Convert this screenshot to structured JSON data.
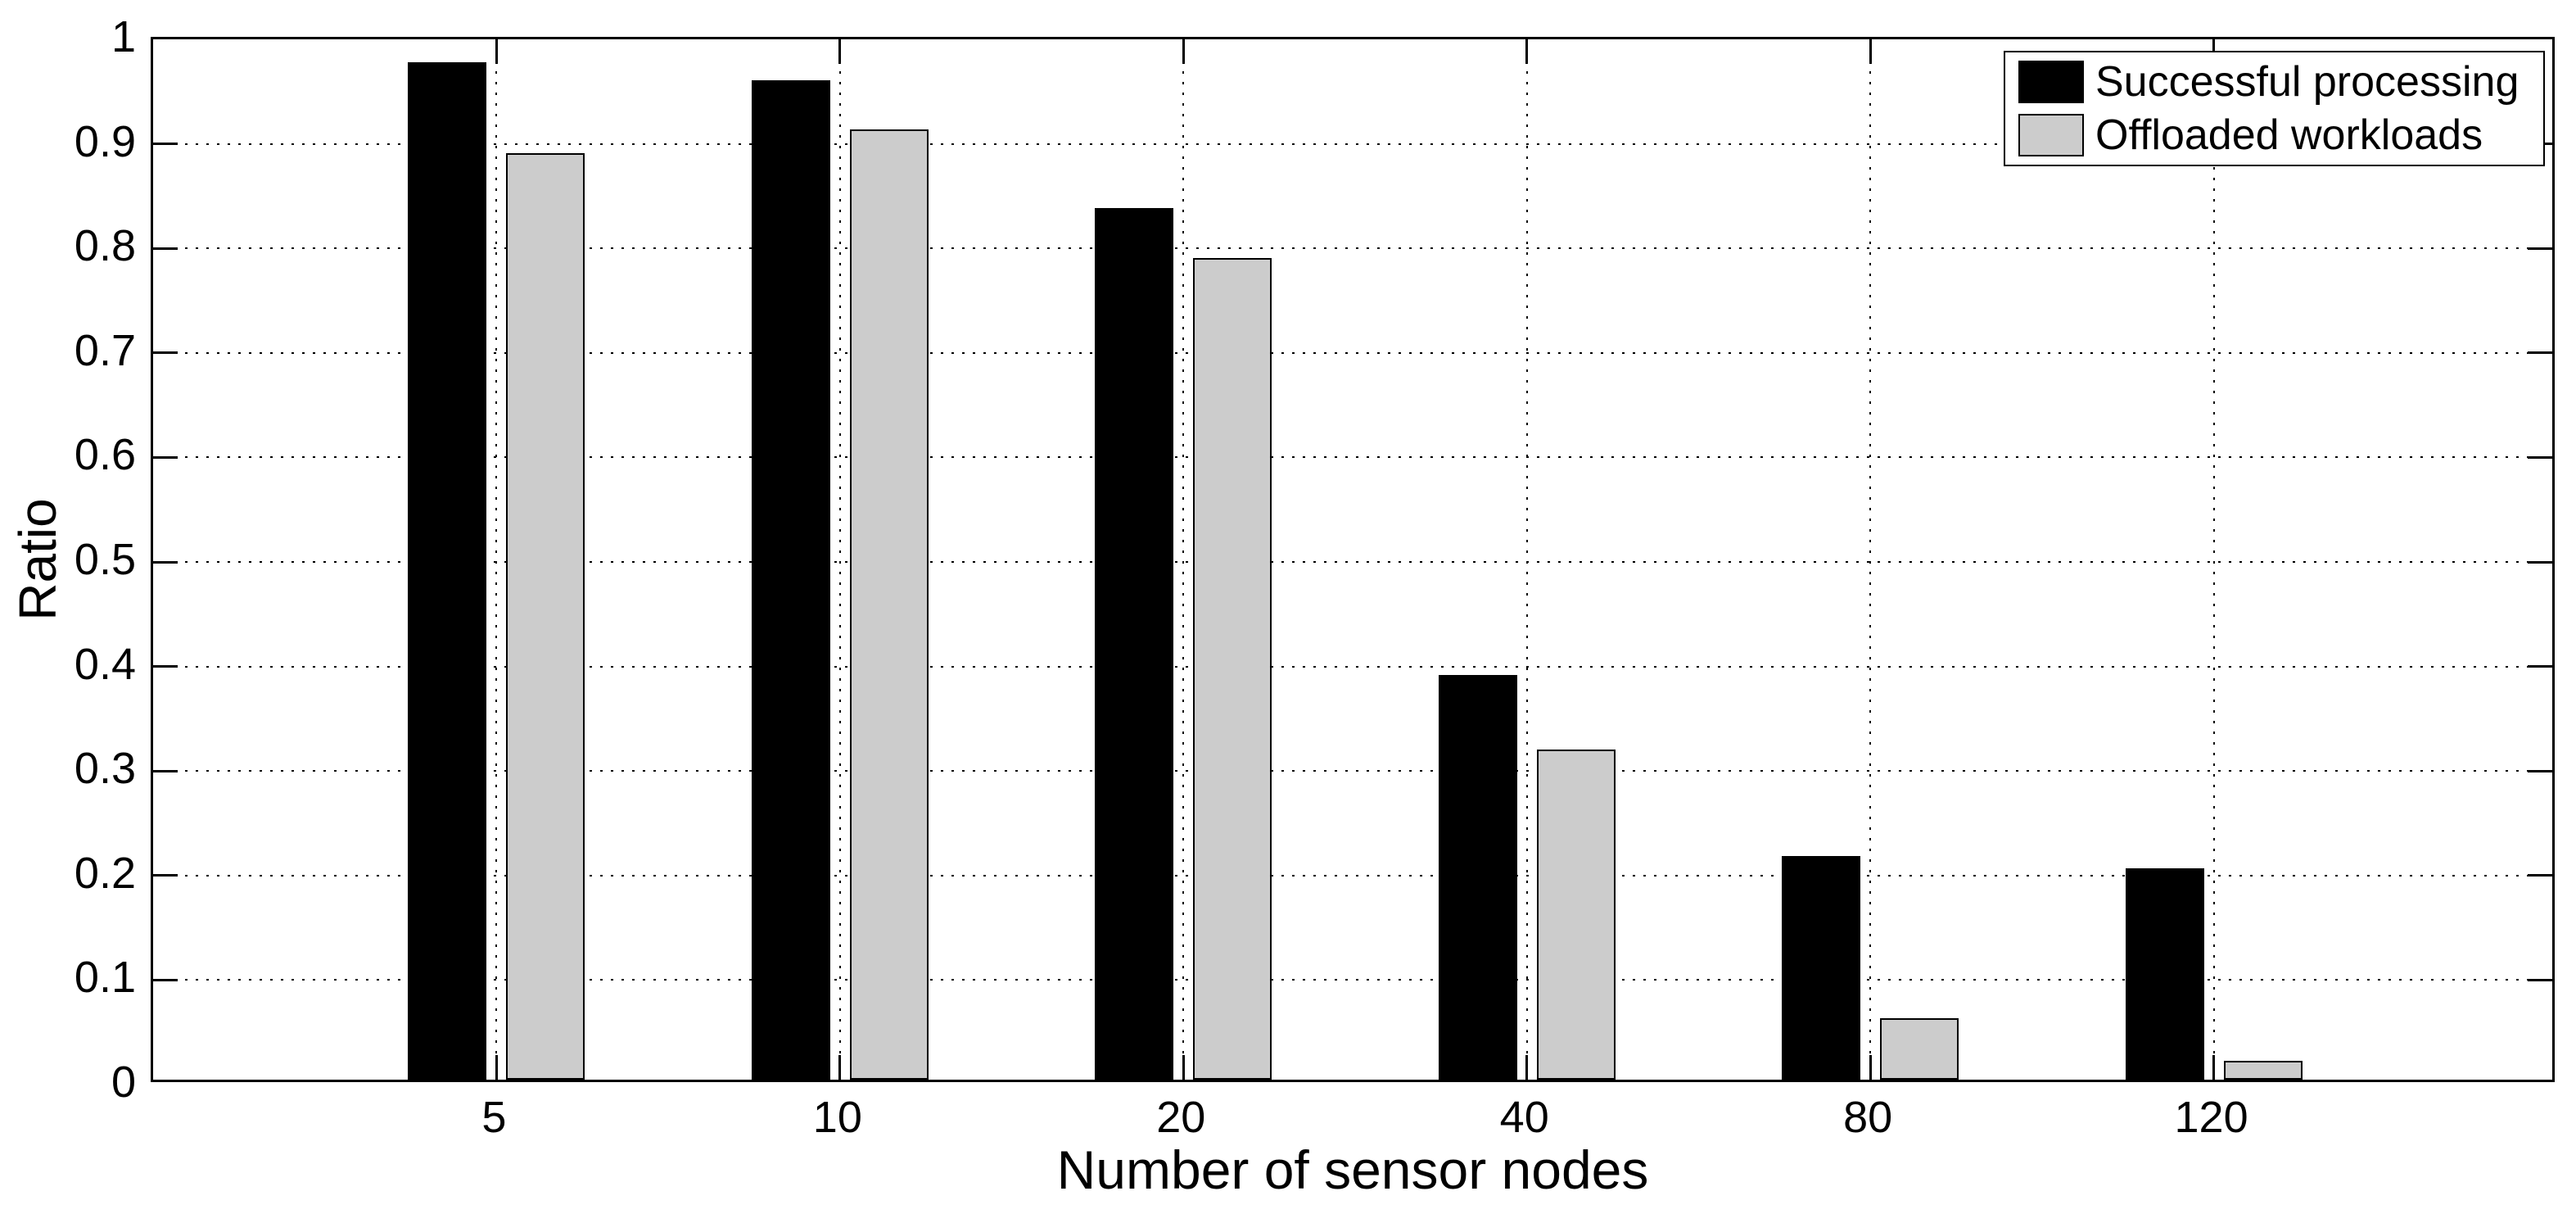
{
  "chart_data": {
    "type": "bar",
    "title": "",
    "xlabel": "Number of sensor nodes",
    "ylabel": "Ratio",
    "categories": [
      "5",
      "10",
      "20",
      "40",
      "80",
      "120"
    ],
    "series": [
      {
        "name": "Successful processing",
        "color": "#000000",
        "values": [
          0.973,
          0.956,
          0.834,
          0.387,
          0.214,
          0.202
        ]
      },
      {
        "name": "Offloaded workloads",
        "color": "#cccccc",
        "values": [
          0.886,
          0.909,
          0.786,
          0.316,
          0.059,
          0.018
        ]
      }
    ],
    "ylim": [
      0,
      1
    ],
    "ytick_labels": [
      "0",
      "0.1",
      "0.2",
      "0.3",
      "0.4",
      "0.5",
      "0.6",
      "0.7",
      "0.8",
      "0.9",
      "1"
    ],
    "grid": "dotted",
    "legend_position": "top-right",
    "bar_edge_color": "#000000",
    "background": "#ffffff"
  }
}
